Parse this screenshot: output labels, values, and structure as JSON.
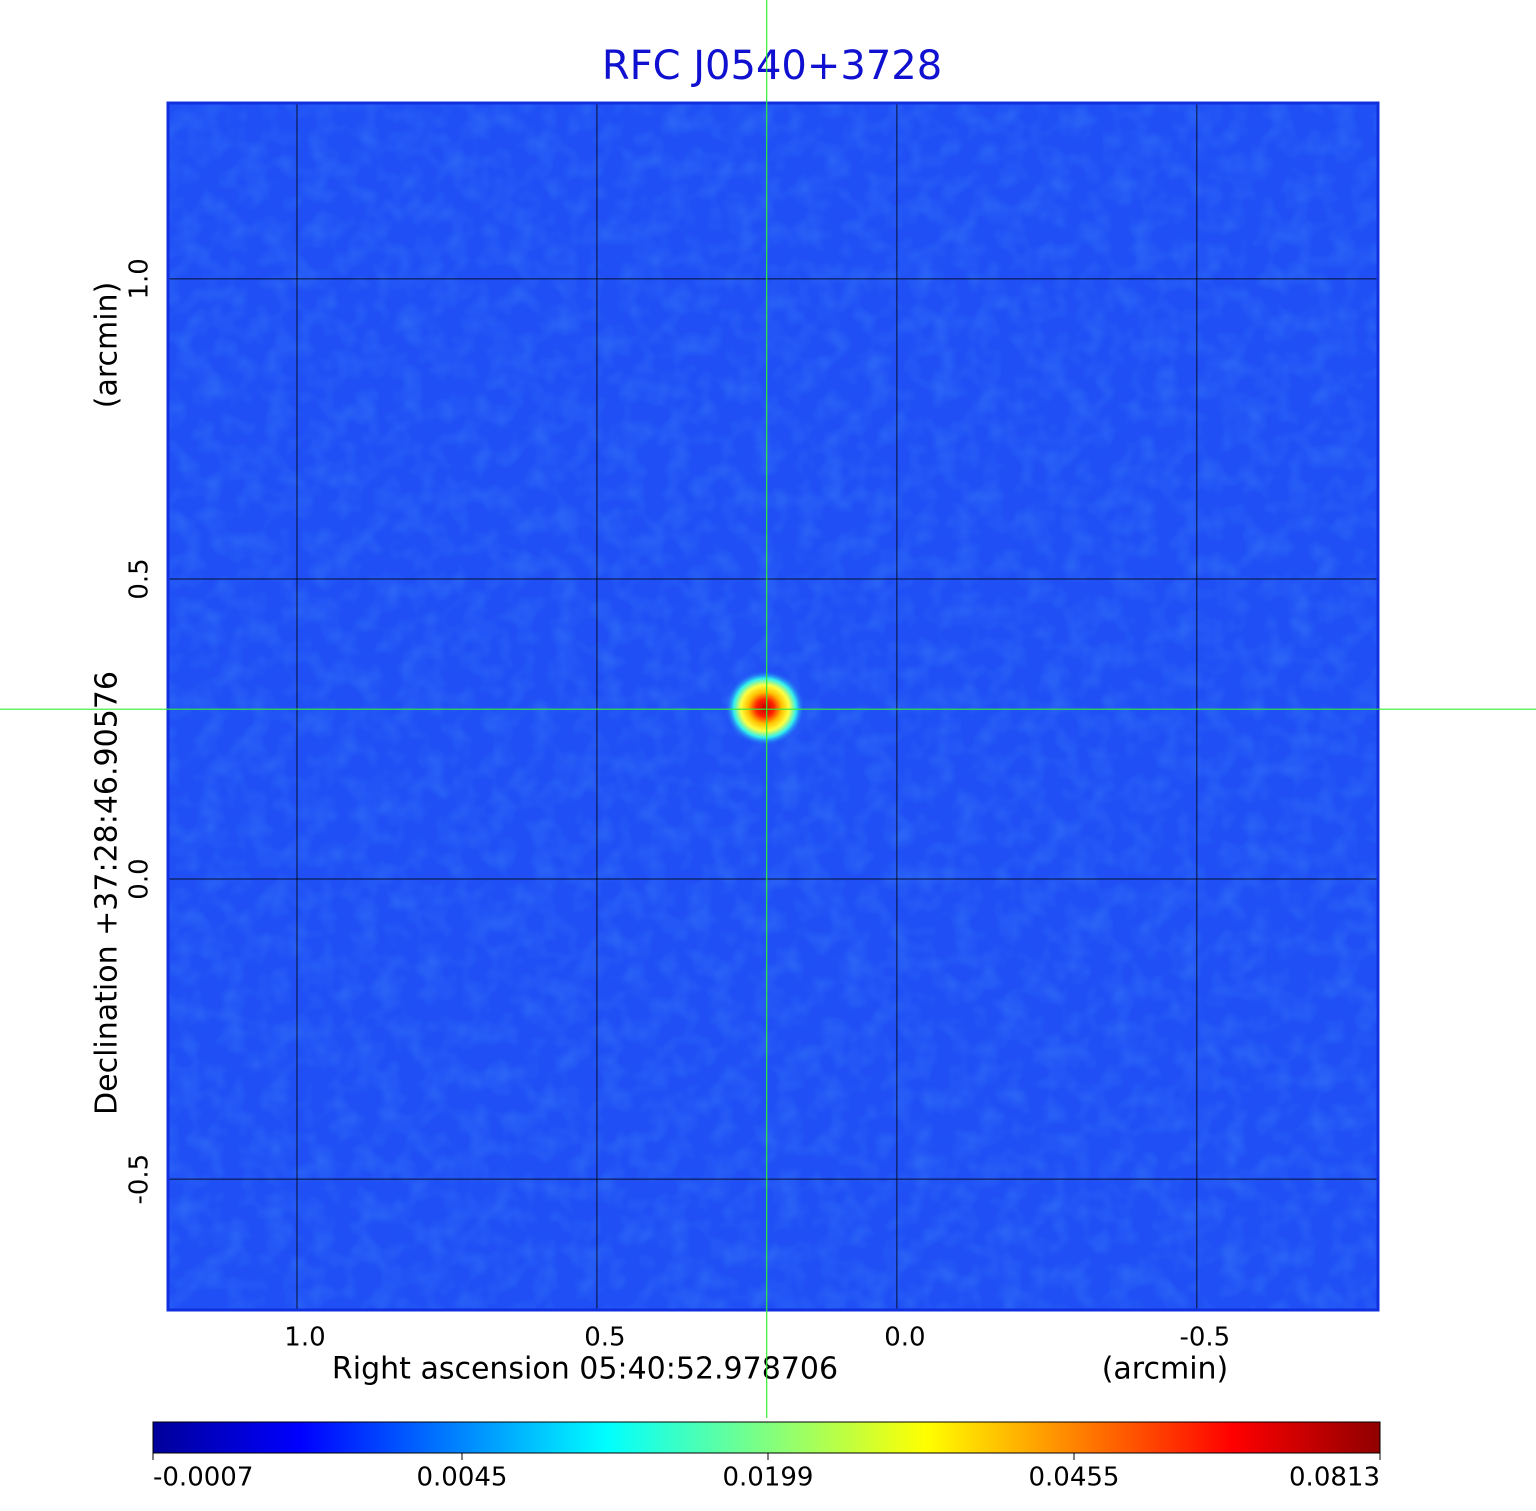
{
  "chart_data": {
    "type": "image",
    "title": "RFC J0540+3728",
    "x_label": "Right ascension  05:40:52.978706",
    "x_unit": "(arcmin)",
    "y_label": "Declination  +37:28:46.90576",
    "y_unit": "(arcmin)",
    "xlim": [
      1.215,
      -0.802
    ],
    "ylim": [
      -0.718,
      1.293
    ],
    "xticks": [
      {
        "value": 1,
        "label": "1.0"
      },
      0.5,
      {
        "value": 0,
        "label": "0.0"
      },
      -0.5
    ],
    "yticks": [
      {
        "value": 1,
        "label": "1.0"
      },
      0.5,
      {
        "value": 0,
        "label": "0.0"
      },
      -0.5
    ],
    "grid": true,
    "source": {
      "x": 0.22,
      "y": 0.285
    },
    "crosshair": {
      "x": 0.217,
      "y": 0.283,
      "color": "#33ee33"
    },
    "colorbar": {
      "scale": "sqrt",
      "ticks": [
        -0.0007,
        0.0045,
        0.0199,
        0.0455,
        0.0813
      ]
    }
  }
}
